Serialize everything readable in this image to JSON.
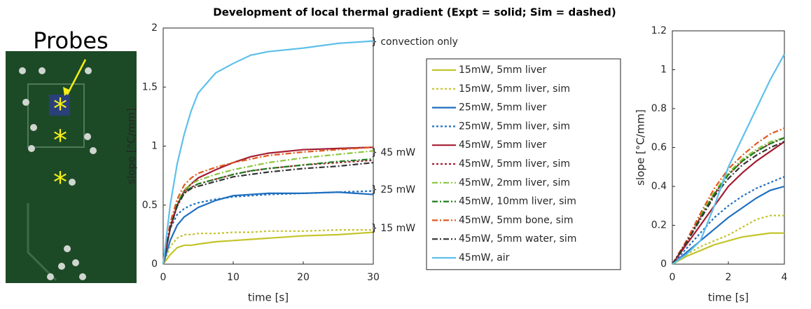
{
  "photo": {
    "label": "Probes"
  },
  "chart_data": [
    {
      "type": "line",
      "title": "Development of local thermal gradient (Expt = solid; Sim = dashed)",
      "x_label": "time [s]",
      "y_label": "slope [°C/mm]",
      "xlim": [
        0,
        30
      ],
      "xticks": [
        0,
        10,
        20,
        30
      ],
      "ylim": [
        0,
        2
      ],
      "yticks": [
        0,
        0.5,
        1,
        1.5,
        2
      ],
      "grid": false,
      "legend": "right",
      "annotations": [
        "} convection only",
        "} 45 mW",
        "} 25 mW",
        "} 15 mW"
      ],
      "x": [
        0,
        1,
        2,
        3,
        4,
        5,
        7.5,
        10,
        12.5,
        15,
        20,
        25,
        30
      ],
      "series": [
        {
          "name": "15mW, 5mm liver",
          "color": "#c4c42c",
          "dash": "solid",
          "values": [
            0,
            0.08,
            0.14,
            0.16,
            0.16,
            0.17,
            0.19,
            0.2,
            0.21,
            0.22,
            0.24,
            0.25,
            0.27
          ]
        },
        {
          "name": "15mW, 5mm liver, sim",
          "color": "#c4c42c",
          "dash": "dotted",
          "values": [
            0,
            0.15,
            0.22,
            0.25,
            0.25,
            0.26,
            0.26,
            0.27,
            0.27,
            0.28,
            0.28,
            0.29,
            0.29
          ]
        },
        {
          "name": "25mW, 5mm liver",
          "color": "#1f6fbf",
          "dash": "solid",
          "values": [
            0,
            0.2,
            0.33,
            0.4,
            0.44,
            0.48,
            0.54,
            0.58,
            0.59,
            0.6,
            0.6,
            0.61,
            0.59
          ]
        },
        {
          "name": "25mW, 5mm liver, sim",
          "color": "#1f6fbf",
          "dash": "dotted",
          "values": [
            0,
            0.3,
            0.42,
            0.47,
            0.5,
            0.52,
            0.55,
            0.57,
            0.58,
            0.59,
            0.6,
            0.61,
            0.62
          ]
        },
        {
          "name": "45mW, 5mm liver",
          "color": "#a21d33",
          "dash": "solid",
          "values": [
            0,
            0.3,
            0.5,
            0.62,
            0.68,
            0.73,
            0.8,
            0.86,
            0.91,
            0.94,
            0.97,
            0.98,
            0.99
          ]
        },
        {
          "name": "45mW, 5mm liver, sim",
          "color": "#a21d33",
          "dash": "dotted",
          "values": [
            0,
            0.32,
            0.5,
            0.6,
            0.65,
            0.68,
            0.72,
            0.76,
            0.79,
            0.81,
            0.84,
            0.86,
            0.88
          ]
        },
        {
          "name": "45mW, 2mm liver, sim",
          "color": "#8cc63f",
          "dash": "dashdot",
          "values": [
            0,
            0.33,
            0.52,
            0.63,
            0.68,
            0.71,
            0.76,
            0.8,
            0.83,
            0.86,
            0.9,
            0.93,
            0.96
          ]
        },
        {
          "name": "45mW, 10mm liver, sim",
          "color": "#1e7d1e",
          "dash": "dashdot",
          "values": [
            0,
            0.32,
            0.51,
            0.61,
            0.65,
            0.68,
            0.72,
            0.76,
            0.79,
            0.81,
            0.84,
            0.87,
            0.89
          ]
        },
        {
          "name": "45mW, 5mm bone, sim",
          "color": "#e2581c",
          "dash": "dashdot",
          "values": [
            0,
            0.35,
            0.55,
            0.67,
            0.73,
            0.77,
            0.82,
            0.86,
            0.89,
            0.92,
            0.95,
            0.97,
            0.99
          ]
        },
        {
          "name": "45mW, 5mm water, sim",
          "color": "#333333",
          "dash": "dashdot",
          "values": [
            0,
            0.31,
            0.49,
            0.6,
            0.64,
            0.66,
            0.7,
            0.74,
            0.76,
            0.78,
            0.81,
            0.83,
            0.86
          ]
        },
        {
          "name": "45mW, air",
          "color": "#5ec0eb",
          "dash": "solid",
          "values": [
            0,
            0.5,
            0.85,
            1.1,
            1.3,
            1.45,
            1.62,
            1.7,
            1.77,
            1.8,
            1.83,
            1.87,
            1.89
          ]
        }
      ]
    },
    {
      "type": "line",
      "x_label": "time [s]",
      "y_label": "slope [°C/mm]",
      "xlim": [
        0,
        4
      ],
      "xticks": [
        0,
        2,
        4
      ],
      "ylim": [
        0,
        1.2
      ],
      "yticks": [
        0,
        0.2,
        0.4,
        0.6,
        0.8,
        1,
        1.2
      ],
      "grid": false,
      "x": [
        0,
        0.5,
        1,
        1.5,
        2,
        2.5,
        3,
        3.5,
        4
      ],
      "series": [
        {
          "color": "#c4c42c",
          "dash": "solid",
          "values": [
            0,
            0.04,
            0.07,
            0.1,
            0.12,
            0.14,
            0.15,
            0.16,
            0.16
          ]
        },
        {
          "color": "#c4c42c",
          "dash": "dotted",
          "values": [
            0,
            0.05,
            0.09,
            0.12,
            0.15,
            0.19,
            0.23,
            0.25,
            0.25
          ]
        },
        {
          "color": "#1f6fbf",
          "dash": "solid",
          "values": [
            0,
            0.06,
            0.12,
            0.18,
            0.24,
            0.29,
            0.34,
            0.38,
            0.4
          ]
        },
        {
          "color": "#1f6fbf",
          "dash": "dotted",
          "values": [
            0,
            0.08,
            0.16,
            0.24,
            0.3,
            0.35,
            0.39,
            0.42,
            0.45
          ]
        },
        {
          "color": "#a21d33",
          "dash": "solid",
          "values": [
            0,
            0.1,
            0.2,
            0.3,
            0.4,
            0.47,
            0.53,
            0.58,
            0.63
          ]
        },
        {
          "color": "#a21d33",
          "dash": "dotted",
          "values": [
            0,
            0.11,
            0.24,
            0.36,
            0.46,
            0.53,
            0.58,
            0.62,
            0.65
          ]
        },
        {
          "color": "#8cc63f",
          "dash": "dashdot",
          "values": [
            0,
            0.11,
            0.25,
            0.37,
            0.47,
            0.54,
            0.59,
            0.63,
            0.65
          ]
        },
        {
          "color": "#1e7d1e",
          "dash": "dashdot",
          "values": [
            0,
            0.11,
            0.24,
            0.36,
            0.46,
            0.53,
            0.58,
            0.62,
            0.65
          ]
        },
        {
          "color": "#e2581c",
          "dash": "dashdot",
          "values": [
            0,
            0.12,
            0.26,
            0.39,
            0.49,
            0.56,
            0.62,
            0.67,
            0.7
          ]
        },
        {
          "color": "#333333",
          "dash": "dashdot",
          "values": [
            0,
            0.11,
            0.23,
            0.35,
            0.44,
            0.51,
            0.56,
            0.6,
            0.63
          ]
        },
        {
          "color": "#5ec0eb",
          "dash": "solid",
          "values": [
            0,
            0.05,
            0.12,
            0.3,
            0.5,
            0.65,
            0.8,
            0.95,
            1.08
          ]
        }
      ]
    }
  ]
}
